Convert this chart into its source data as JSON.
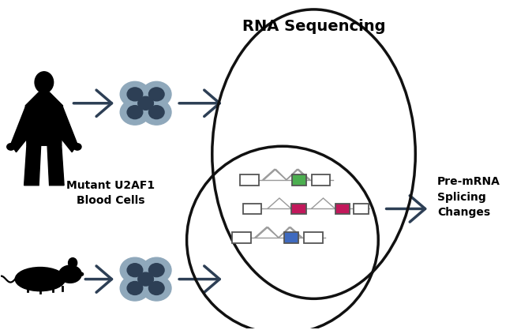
{
  "title": "RNA Sequencing",
  "label_mutant": "Mutant U2AF1\nBlood Cells",
  "label_premrna": "Pre-mRNA\nSplicing\nChanges",
  "bg_color": "#ffffff",
  "text_color": "#000000",
  "arrow_color": "#2d3f55",
  "circle_color": "#111111",
  "cell_fill": "#8fa8bb",
  "cell_dark": "#2d3f55",
  "green_exon": "#4caf50",
  "magenta_exon": "#c2185b",
  "blue_exon": "#3f6abf",
  "intron_color": "#aaaaaa",
  "exon_border": "#555555",
  "figw": 6.55,
  "figh": 4.18,
  "dpi": 100
}
